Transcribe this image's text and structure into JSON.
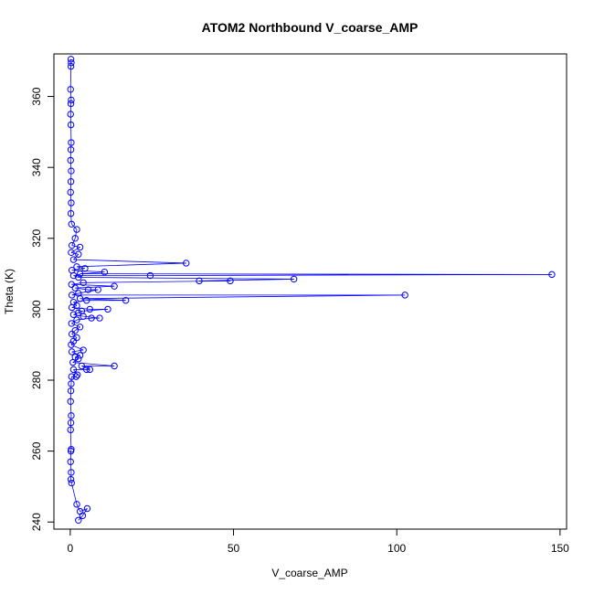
{
  "chart_data": {
    "type": "scatter",
    "title": "ATOM2 Northbound V_coarse_AMP",
    "xlabel": "V_coarse_AMP",
    "ylabel": "Theta (K)",
    "xlim": [
      -5,
      152
    ],
    "ylim": [
      238,
      372
    ],
    "xticks": [
      0,
      50,
      100,
      150
    ],
    "yticks": [
      240,
      260,
      280,
      300,
      320,
      340,
      360
    ],
    "grid": false,
    "legend": "none",
    "colors": {
      "series": "#0000ff",
      "axis": "#000000"
    },
    "series": [
      {
        "style": "points-and-lines",
        "points": [
          [
            2.5,
            240.5
          ],
          [
            3.8,
            241.8
          ],
          [
            5.2,
            243.8
          ],
          [
            3.0,
            243.0
          ],
          [
            2.0,
            245.0
          ],
          [
            0.4,
            251.0
          ],
          [
            0.2,
            252.0
          ],
          [
            0.3,
            254.0
          ],
          [
            0.1,
            257.0
          ],
          [
            0.2,
            260.0
          ],
          [
            0.3,
            260.5
          ],
          [
            0.1,
            266.0
          ],
          [
            0.2,
            268.0
          ],
          [
            0.3,
            270.0
          ],
          [
            0.1,
            274.0
          ],
          [
            0.2,
            277.0
          ],
          [
            0.3,
            279.0
          ],
          [
            0.4,
            281.0
          ],
          [
            1.8,
            281.0
          ],
          [
            2.2,
            281.5
          ],
          [
            1.0,
            283.0
          ],
          [
            5.0,
            283.0
          ],
          [
            6.0,
            283.0
          ],
          [
            3.5,
            284.0
          ],
          [
            13.5,
            284.0
          ],
          [
            0.8,
            285.0
          ],
          [
            2.5,
            286.0
          ],
          [
            1.5,
            286.5
          ],
          [
            3.0,
            287.0
          ],
          [
            0.5,
            288.0
          ],
          [
            4.0,
            288.5
          ],
          [
            0.3,
            290.0
          ],
          [
            1.0,
            291.0
          ],
          [
            2.0,
            292.0
          ],
          [
            0.5,
            293.0
          ],
          [
            1.5,
            294.0
          ],
          [
            3.0,
            295.0
          ],
          [
            0.4,
            296.0
          ],
          [
            2.0,
            297.0
          ],
          [
            6.5,
            297.5
          ],
          [
            9.0,
            297.5
          ],
          [
            4.0,
            298.0
          ],
          [
            1.0,
            298.5
          ],
          [
            2.5,
            299.0
          ],
          [
            3.5,
            299.5
          ],
          [
            11.5,
            300.0
          ],
          [
            6.0,
            300.0
          ],
          [
            0.5,
            300.5
          ],
          [
            2.0,
            301.0
          ],
          [
            1.0,
            302.0
          ],
          [
            5.0,
            302.5
          ],
          [
            17.0,
            302.5
          ],
          [
            3.0,
            303.0
          ],
          [
            102.5,
            304.0
          ],
          [
            0.5,
            304.0
          ],
          [
            2.5,
            304.5
          ],
          [
            8.5,
            305.5
          ],
          [
            5.5,
            305.5
          ],
          [
            1.5,
            306.0
          ],
          [
            13.5,
            306.5
          ],
          [
            0.4,
            307.0
          ],
          [
            4.0,
            307.5
          ],
          [
            49.0,
            308.0
          ],
          [
            39.5,
            308.0
          ],
          [
            68.5,
            308.5
          ],
          [
            2.5,
            309.0
          ],
          [
            1.0,
            309.5
          ],
          [
            24.5,
            309.5
          ],
          [
            147.5,
            309.8
          ],
          [
            3.0,
            310.0
          ],
          [
            10.5,
            310.5
          ],
          [
            0.5,
            311.0
          ],
          [
            4.5,
            311.5
          ],
          [
            2.0,
            312.0
          ],
          [
            35.5,
            313.0
          ],
          [
            1.0,
            314.0
          ],
          [
            2.5,
            315.5
          ],
          [
            0.3,
            316.0
          ],
          [
            3.0,
            317.5
          ],
          [
            0.5,
            318.0
          ],
          [
            1.5,
            320.0
          ],
          [
            2.0,
            322.5
          ],
          [
            0.4,
            324.0
          ],
          [
            0.2,
            327.0
          ],
          [
            0.3,
            330.0
          ],
          [
            0.1,
            333.0
          ],
          [
            0.2,
            336.0
          ],
          [
            0.3,
            339.0
          ],
          [
            0.1,
            342.0
          ],
          [
            0.2,
            345.0
          ],
          [
            0.3,
            347.0
          ],
          [
            0.2,
            352.0
          ],
          [
            0.1,
            355.0
          ],
          [
            0.2,
            358.0
          ],
          [
            0.3,
            359.0
          ],
          [
            0.1,
            362.0
          ],
          [
            0.2,
            368.5
          ],
          [
            0.3,
            369.5
          ],
          [
            0.2,
            370.5
          ]
        ]
      }
    ]
  }
}
